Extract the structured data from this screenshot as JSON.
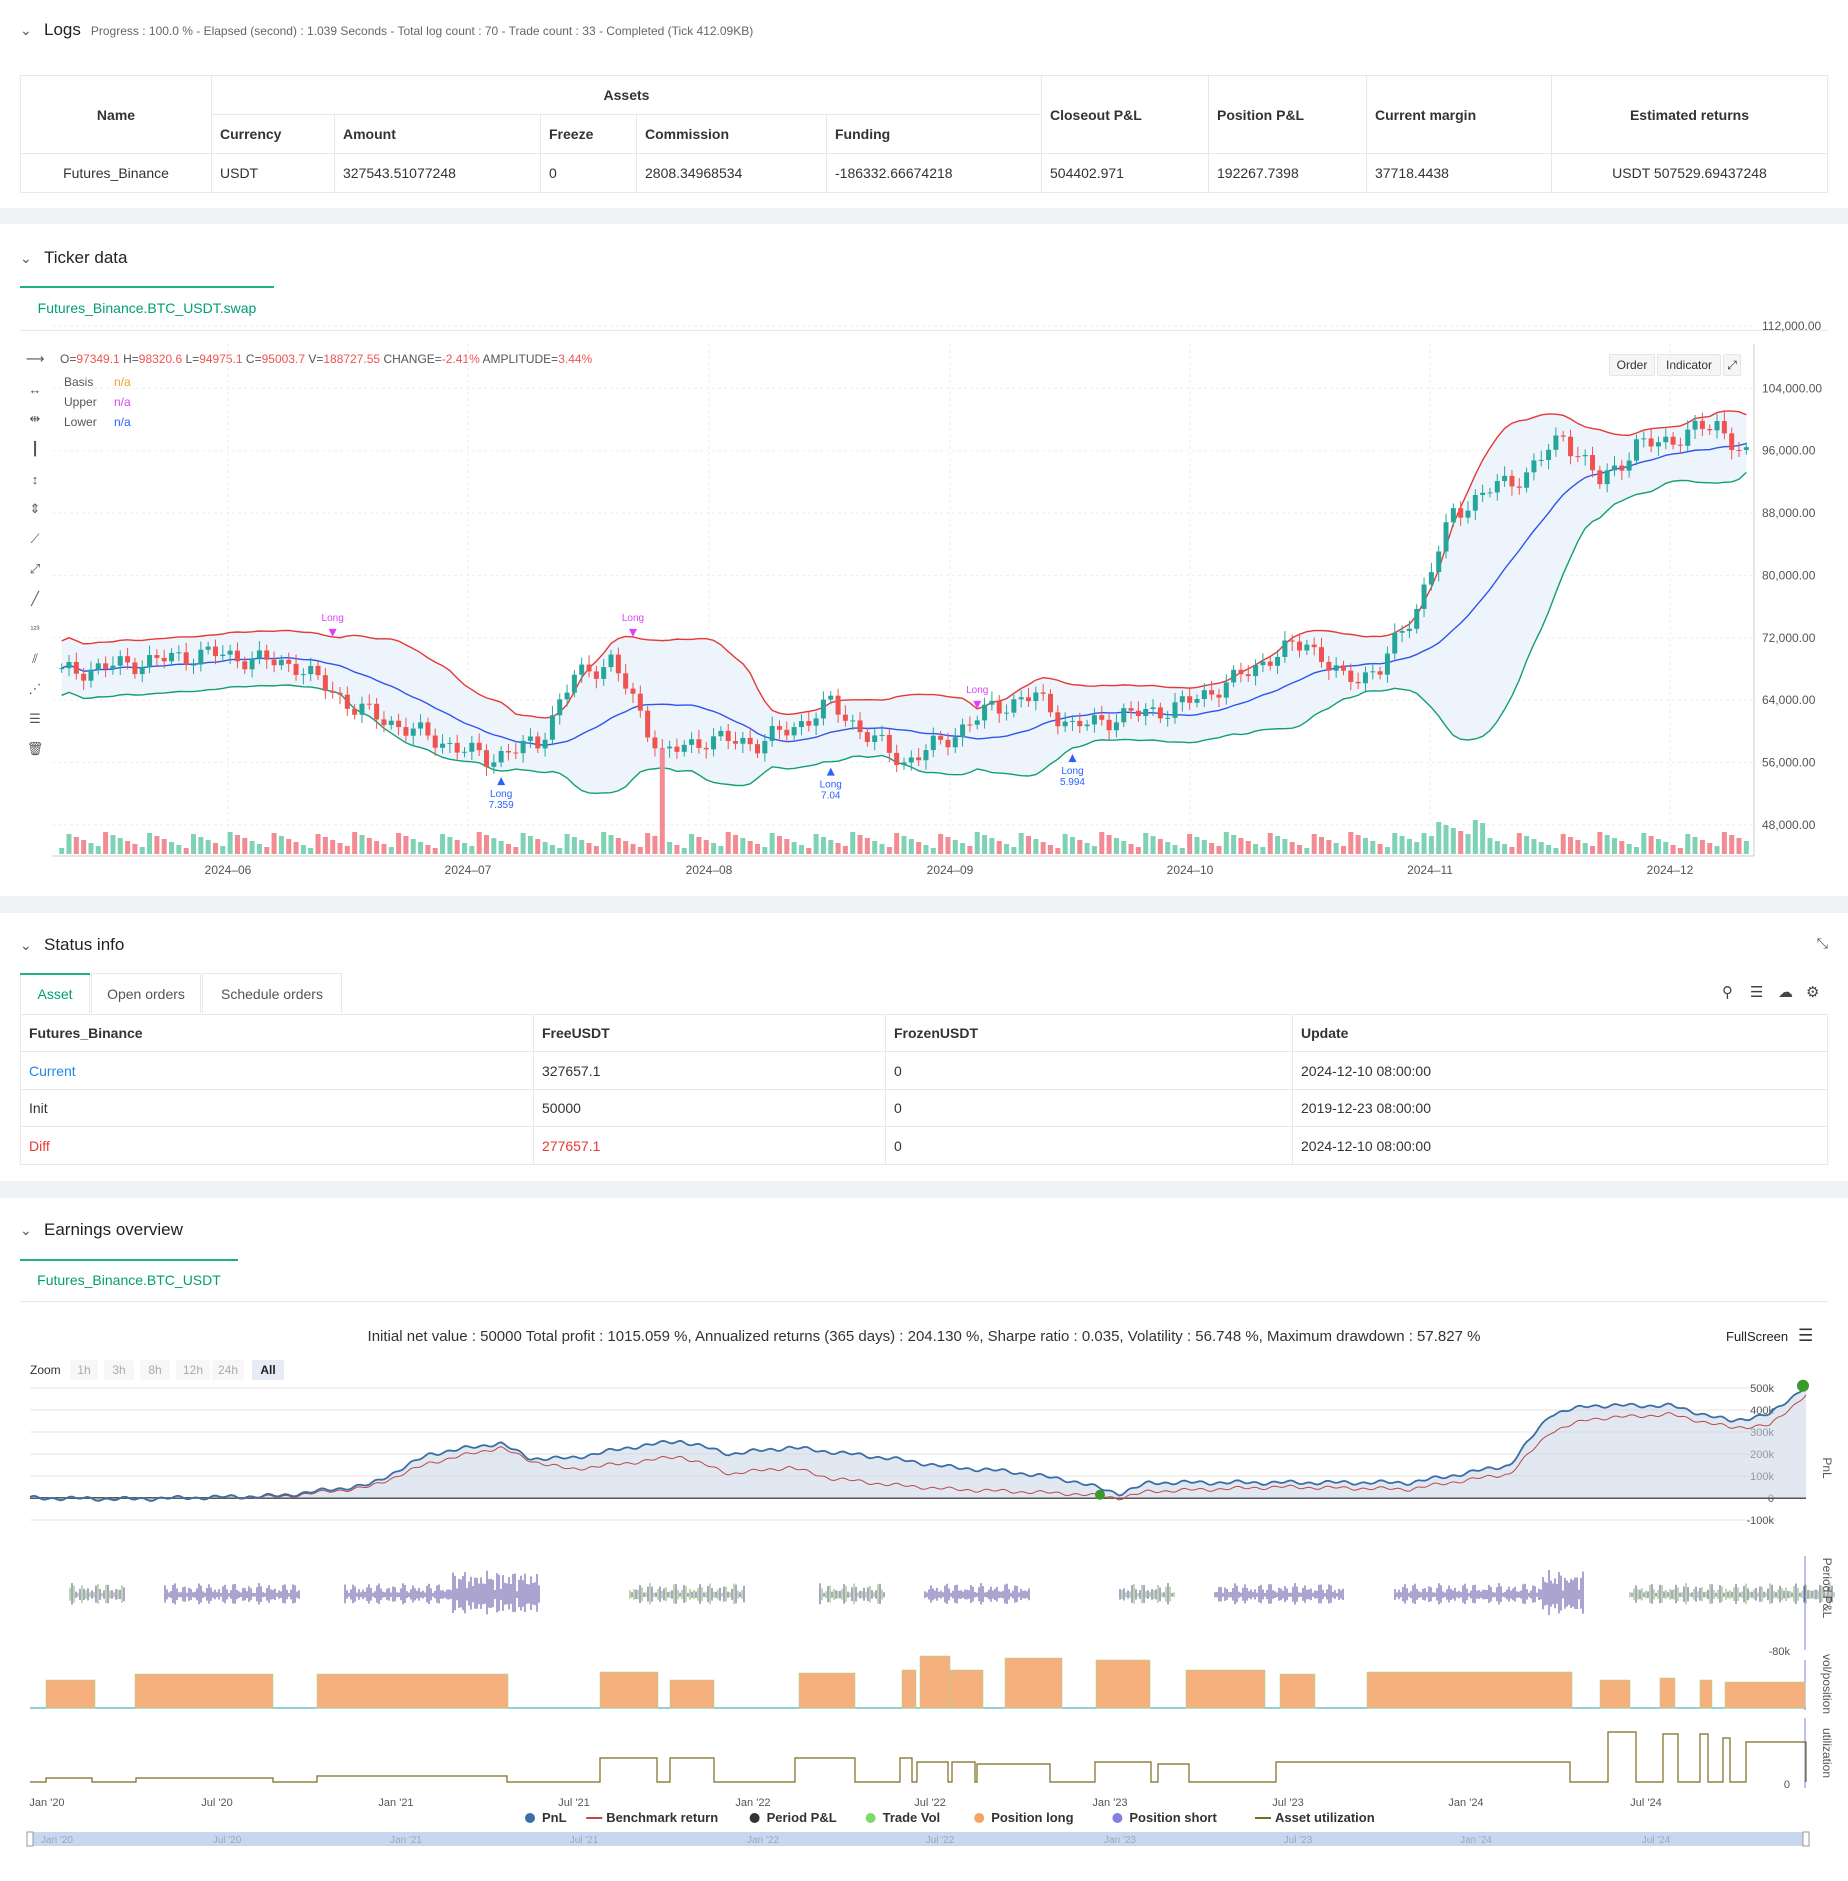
{
  "logs": {
    "title": "Logs",
    "summary": "Progress : 100.0 % - Elapsed (second) : 1.039  Seconds - Total log count : 70 - Trade count : 33 - Completed (Tick 412.09KB)",
    "table": {
      "h_name": "Name",
      "h_assets": "Assets",
      "h_closeout": "Closeout P&L",
      "h_position": "Position P&L",
      "h_margin": "Current margin",
      "h_returns": "Estimated returns",
      "h_currency": "Currency",
      "h_amount": "Amount",
      "h_freeze": "Freeze",
      "h_commission": "Commission",
      "h_funding": "Funding",
      "row": {
        "name": "Futures_Binance",
        "currency": "USDT",
        "amount": "327543.51077248",
        "freeze": "0",
        "commission": "2808.34968534",
        "funding": "-186332.66674218",
        "closeout": "504402.971",
        "position": "192267.7398",
        "margin": "37718.4438",
        "returns": "USDT 507529.69437248"
      }
    }
  },
  "ticker": {
    "title": "Ticker data",
    "tab": "Futures_Binance.BTC_USDT.swap",
    "ohlc": {
      "o_label": "O=",
      "o": "97349.1",
      "h_label": "H=",
      "h": "98320.6",
      "l_label": "L=",
      "l": "94975.1",
      "c_label": "C=",
      "c": "95003.7",
      "v_label": "V=",
      "v": "188727.55",
      "chg_label": "CHANGE=",
      "chg": "-2.41%",
      "amp_label": "AMPLITUDE=",
      "amp": "3.44%"
    },
    "indicators": [
      {
        "name": "Basis",
        "value": "n/a",
        "color": "#f0a030"
      },
      {
        "name": "Upper",
        "value": "n/a",
        "color": "#e040fb"
      },
      {
        "name": "Lower",
        "value": "n/a",
        "color": "#2962ff"
      }
    ],
    "buttons": {
      "order": "Order",
      "indicator": "Indicator"
    },
    "y_ticks": [
      "112,000.00",
      "104,000.00",
      "96,000.00",
      "88,000.00",
      "80,000.00",
      "72,000.00",
      "64,000.00",
      "56,000.00",
      "48,000.00"
    ],
    "x_ticks": [
      "2024–06",
      "2024–07",
      "2024–08",
      "2024–09",
      "2024–10",
      "2024–11",
      "2024–12"
    ],
    "trade_labels": [
      {
        "text": "Long",
        "color": "#e040fb"
      },
      {
        "text": "Long",
        "color": "#e040fb"
      },
      {
        "text": "Long",
        "color": "#e040fb"
      },
      {
        "text": "Long",
        "sub": "7.359",
        "color": "#2962ff"
      },
      {
        "text": "Long",
        "sub": "7.04",
        "color": "#2962ff"
      },
      {
        "text": "Long",
        "sub": "5.994",
        "color": "#2962ff"
      }
    ],
    "colors": {
      "up": "#26a69a",
      "down": "#ef5350",
      "upper": "#e53935",
      "lower": "#129e73",
      "basis": "#2f54eb"
    }
  },
  "status": {
    "title": "Status info",
    "tabs": [
      "Asset",
      "Open orders",
      "Schedule orders"
    ],
    "headers": [
      "Futures_Binance",
      "FreeUSDT",
      "FrozenUSDT",
      "Update"
    ],
    "rows": [
      {
        "label": "Current",
        "free": "327657.1",
        "frozen": "0",
        "update": "2024-12-10 08:00:00"
      },
      {
        "label": "Init",
        "free": "50000",
        "frozen": "0",
        "update": "2019-12-23 08:00:00"
      },
      {
        "label": "Diff",
        "free": "277657.1",
        "frozen": "0",
        "update": "2024-12-10 08:00:00"
      }
    ]
  },
  "earnings": {
    "title": "Earnings overview",
    "tab": "Futures_Binance.BTC_USDT",
    "summary": "Initial net value : 50000 Total profit : 1015.059 %, Annualized returns (365 days) : 204.130 %, Sharpe ratio : 0.035, Volatility : 56.748 %, Maximum drawdown : 57.827 %",
    "fullscreen": "FullScreen",
    "zoom_label": "Zoom",
    "zoom": [
      "1h",
      "3h",
      "8h",
      "12h",
      "24h",
      "All"
    ],
    "pnl_ticks": [
      "500k",
      "400k",
      "300k",
      "200k",
      "100k",
      "0",
      "-100k"
    ],
    "period_ticks": [
      "-80k"
    ],
    "util_ticks": [
      "0"
    ],
    "axis_titles": [
      "PnL",
      "Period P&L",
      "vol/position",
      "utilization"
    ],
    "x_ticks": [
      "Jan '20",
      "Jul '20",
      "Jan '21",
      "Jul '21",
      "Jan '22",
      "Jul '22",
      "Jan '23",
      "Jul '23",
      "Jan '24",
      "Jul '24"
    ],
    "legend": [
      {
        "name": "PnL",
        "color": "#3b6ea5",
        "shape": "dot"
      },
      {
        "name": "Benchmark return",
        "color": "#b94a48",
        "shape": "line"
      },
      {
        "name": "Period P&L",
        "color": "#333333",
        "shape": "dot"
      },
      {
        "name": "Trade Vol",
        "color": "#7ed96b",
        "shape": "dot"
      },
      {
        "name": "Position long",
        "color": "#f4a460",
        "shape": "dot"
      },
      {
        "name": "Position short",
        "color": "#8080e0",
        "shape": "dot"
      },
      {
        "name": "Asset utilization",
        "color": "#7a6a20",
        "shape": "line"
      }
    ]
  }
}
